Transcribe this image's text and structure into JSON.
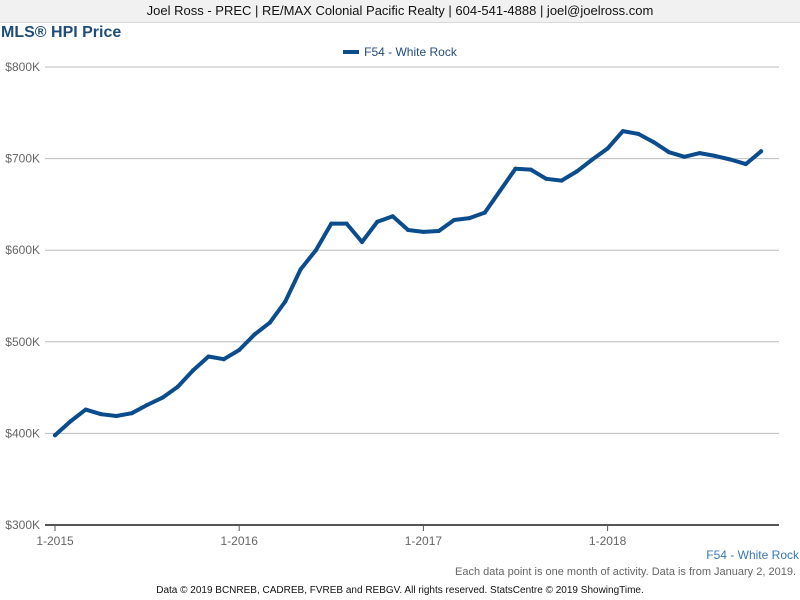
{
  "header": {
    "text": "Joel Ross - PREC | RE/MAX Colonial Pacific Realty | 604-541-4888 | joel@joelross.com"
  },
  "footer": {
    "series_note": "F54 - White Rock",
    "note": "Each data point is one month of activity. Data is from January 2, 2019.",
    "copyright": "Data © 2019 BCNREB, CADREB, FVREB and REBGV. All rights reserved. StatsCentre © 2019 ShowingTime."
  },
  "colors": {
    "series": "#0b4c8c",
    "title": "#1f4d7a",
    "grid": "#bdbdbd",
    "axis": "#555555"
  },
  "chart_data": {
    "type": "line",
    "title": "MLS® HPI Price",
    "legend_position": "top-center",
    "grid": true,
    "ylim": [
      300000,
      800000
    ],
    "y_ticks": [
      300000,
      400000,
      500000,
      600000,
      700000,
      800000
    ],
    "y_tick_labels": [
      "$300K",
      "$400K",
      "$500K",
      "$600K",
      "$700K",
      "$800K"
    ],
    "x_tick_labels": [
      "1-2015",
      "1-2016",
      "1-2017",
      "1-2018"
    ],
    "x": [
      "2015-01",
      "2015-02",
      "2015-03",
      "2015-04",
      "2015-05",
      "2015-06",
      "2015-07",
      "2015-08",
      "2015-09",
      "2015-10",
      "2015-11",
      "2015-12",
      "2016-01",
      "2016-02",
      "2016-03",
      "2016-04",
      "2016-05",
      "2016-06",
      "2016-07",
      "2016-08",
      "2016-09",
      "2016-10",
      "2016-11",
      "2016-12",
      "2017-01",
      "2017-02",
      "2017-03",
      "2017-04",
      "2017-05",
      "2017-06",
      "2017-07",
      "2017-08",
      "2017-09",
      "2017-10",
      "2017-11",
      "2017-12",
      "2018-01",
      "2018-02",
      "2018-03",
      "2018-04",
      "2018-05",
      "2018-06",
      "2018-07",
      "2018-08",
      "2018-09",
      "2018-10",
      "2018-11",
      "2018-12"
    ],
    "series": [
      {
        "name": "F54 - White Rock",
        "values": [
          398000,
          413000,
          426000,
          421000,
          419000,
          422000,
          431000,
          439000,
          451000,
          469000,
          484000,
          481000,
          491000,
          508000,
          521000,
          544000,
          579000,
          600000,
          629000,
          629000,
          609000,
          631000,
          637000,
          622000,
          620000,
          621000,
          633000,
          635000,
          641000,
          665000,
          689000,
          688000,
          678000,
          676000,
          686000,
          699000,
          711000,
          730000,
          727000,
          718000,
          707000,
          702000,
          706000,
          703000,
          699000,
          694000,
          708000,
          null
        ]
      }
    ]
  }
}
